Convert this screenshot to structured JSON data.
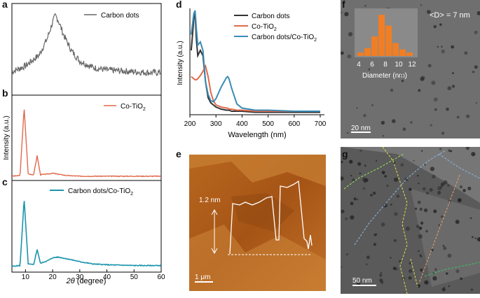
{
  "panels": {
    "a": {
      "letter": "a",
      "legend": "Carbon dots"
    },
    "b": {
      "letter": "b",
      "legend": "Co-TiO",
      "legend_sub": "2"
    },
    "c": {
      "letter": "c",
      "legend": "Carbon dots/Co-TiO",
      "legend_sub": "2"
    },
    "abc_xlabel_italic": "2θ",
    "abc_xlabel_rest": " (degree)",
    "abc_ylabel": "Intensity (a.u.)",
    "abc_xticks": [
      "10",
      "20",
      "30",
      "40",
      "50",
      "60"
    ],
    "d": {
      "letter": "d",
      "legend": [
        "Carbon dots",
        "Co-TiO",
        "Carbon dots/Co-TiO"
      ],
      "legend_sub": "2",
      "xlabel": "Wavelength (nm)",
      "ylabel": "Intensity (a.u.)",
      "xticks": [
        "200",
        "300",
        "400",
        "500",
        "600",
        "700"
      ]
    },
    "e": {
      "letter": "e",
      "height_label": "1.2 nm",
      "scale": "1 μm"
    },
    "f": {
      "letter": "f",
      "mean_size": "<D> = 7 nm",
      "scale": "20 nm",
      "hist_xlabel": "Diameter (nm)",
      "hist_xticks": [
        "4",
        "6",
        "8",
        "10",
        "12"
      ]
    },
    "g": {
      "letter": "g",
      "scale": "50 nm"
    }
  },
  "colors": {
    "carbon": "#333333",
    "co_tio2": "#e06a4c",
    "composite": "#3b8bb5",
    "a_trace": "#666666",
    "c_trace": "#1b95ad",
    "hist": "#f07e24"
  },
  "chart_data": [
    {
      "type": "line",
      "title": "",
      "legend": [
        "Carbon dots"
      ],
      "xlabel": "2θ (degree)",
      "ylabel": "Intensity (a.u.)",
      "xlim": [
        5,
        60
      ],
      "x": [
        5,
        10,
        15,
        18,
        20,
        21,
        22,
        24,
        27,
        30,
        35,
        40,
        45,
        50,
        55,
        60
      ],
      "series": [
        {
          "name": "Carbon dots",
          "values": [
            0.25,
            0.32,
            0.45,
            0.65,
            0.85,
            0.93,
            0.88,
            0.7,
            0.5,
            0.38,
            0.3,
            0.27,
            0.26,
            0.25,
            0.24,
            0.24
          ]
        }
      ]
    },
    {
      "type": "line",
      "legend": [
        "Co-TiO2"
      ],
      "xlim": [
        5,
        60
      ],
      "x": [
        5,
        8,
        9.5,
        11,
        13,
        14.3,
        15.5,
        18,
        20,
        25,
        30,
        40,
        50,
        60
      ],
      "series": [
        {
          "name": "Co-TiO2",
          "values": [
            0.02,
            0.03,
            0.95,
            0.05,
            0.04,
            0.3,
            0.04,
            0.05,
            0.06,
            0.03,
            0.02,
            0.02,
            0.02,
            0.02
          ]
        }
      ]
    },
    {
      "type": "line",
      "legend": [
        "Carbon dots/Co-TiO2"
      ],
      "xlim": [
        5,
        60
      ],
      "x": [
        5,
        8,
        9.5,
        11,
        13,
        14.3,
        15.5,
        18,
        20,
        22,
        25,
        30,
        35,
        40,
        50,
        60
      ],
      "series": [
        {
          "name": "Carbon dots/Co-TiO2",
          "values": [
            0.03,
            0.04,
            0.9,
            0.06,
            0.05,
            0.25,
            0.07,
            0.1,
            0.14,
            0.15,
            0.13,
            0.09,
            0.06,
            0.05,
            0.04,
            0.04
          ]
        }
      ]
    },
    {
      "type": "line",
      "title": "",
      "xlabel": "Wavelength (nm)",
      "ylabel": "Intensity (a.u.)",
      "xlim": [
        200,
        700
      ],
      "x": [
        205,
        215,
        220,
        225,
        230,
        240,
        250,
        260,
        270,
        280,
        290,
        300,
        320,
        340,
        345,
        350,
        360,
        380,
        400,
        450,
        500,
        600,
        700
      ],
      "series": [
        {
          "name": "Carbon dots",
          "values": [
            0.6,
            0.9,
            0.95,
            0.7,
            0.55,
            0.6,
            0.55,
            0.3,
            0.15,
            0.1,
            0.08,
            0.06,
            0.04,
            0.03,
            0.03,
            0.03,
            0.02,
            0.02,
            0.02,
            0.01,
            0.01,
            0.01,
            0.01
          ]
        },
        {
          "name": "Co-TiO2",
          "values": [
            0.35,
            0.33,
            0.32,
            0.32,
            0.33,
            0.36,
            0.4,
            0.45,
            0.35,
            0.2,
            0.12,
            0.08,
            0.06,
            0.05,
            0.05,
            0.04,
            0.04,
            0.03,
            0.03,
            0.02,
            0.02,
            0.02,
            0.02
          ]
        },
        {
          "name": "Carbon dots/Co-TiO2",
          "values": [
            0.75,
            0.95,
            0.98,
            0.8,
            0.65,
            0.68,
            0.6,
            0.3,
            0.18,
            0.12,
            0.11,
            0.14,
            0.25,
            0.34,
            0.35,
            0.33,
            0.24,
            0.09,
            0.05,
            0.03,
            0.03,
            0.02,
            0.02
          ]
        }
      ]
    },
    {
      "type": "bar",
      "title": "",
      "xlabel": "Diameter (nm)",
      "categories": [
        "4",
        "5",
        "6",
        "7",
        "8",
        "9",
        "10",
        "11"
      ],
      "values": [
        0.08,
        0.18,
        0.45,
        0.95,
        0.7,
        0.3,
        0.15,
        0.08
      ]
    }
  ]
}
